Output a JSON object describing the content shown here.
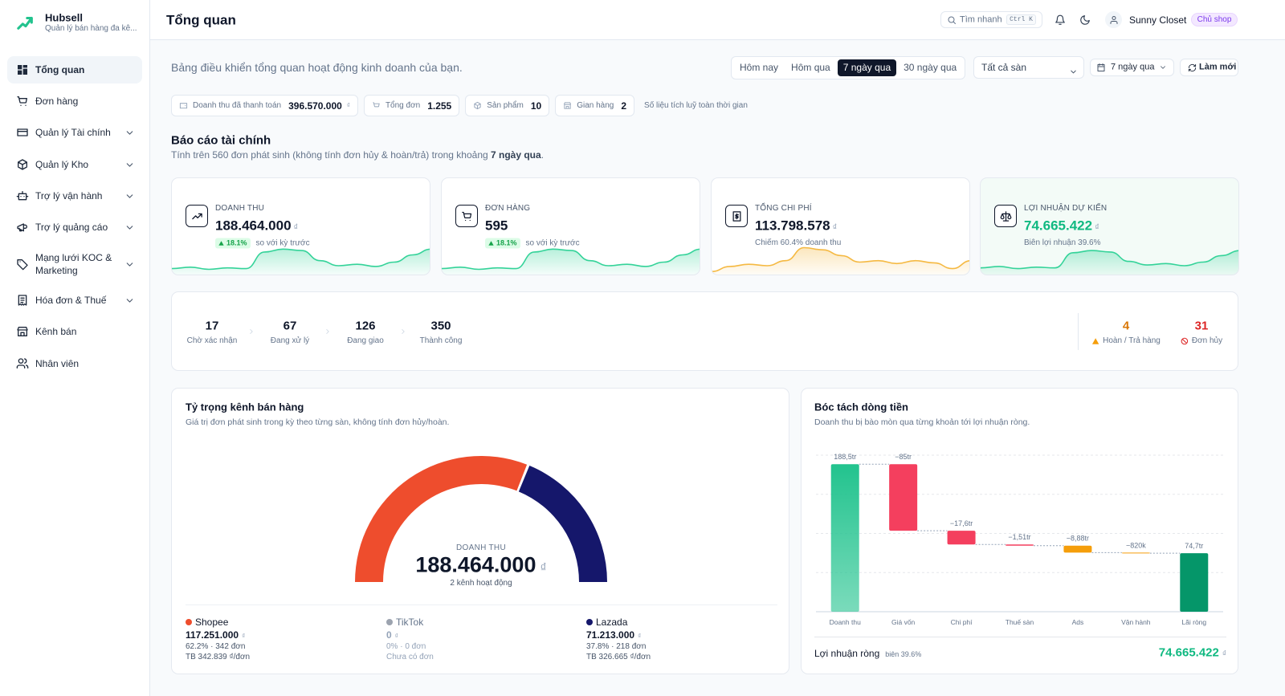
{
  "sidebar": {
    "brand": "Hubsell",
    "tagline": "Quản lý bán hàng đa kê...",
    "nav": [
      {
        "label": "Tổng quan",
        "active": true
      },
      {
        "label": "Đơn hàng"
      },
      {
        "label": "Quản lý Tài chính",
        "submenu": true
      },
      {
        "label": "Quản lý Kho",
        "submenu": true
      },
      {
        "label": "Trợ lý vận hành",
        "submenu": true
      },
      {
        "label": "Trợ lý quảng cáo",
        "submenu": true
      },
      {
        "label": "Mạng lưới KOC & Marketing",
        "submenu": true
      },
      {
        "label": "Hóa đơn & Thuế",
        "submenu": true
      },
      {
        "label": "Kênh bán"
      },
      {
        "label": "Nhân viên"
      }
    ]
  },
  "header": {
    "title": "Tổng quan",
    "search": "Tìm nhanh",
    "shortcut": "Ctrl K",
    "user": "Sunny Closet",
    "role": "Chủ shop"
  },
  "toolbar": {
    "description": "Bảng điều khiển tổng quan hoạt động kinh doanh của bạn.",
    "ranges": [
      "Hôm nay",
      "Hôm qua",
      "7 ngày qua",
      "30 ngày qua"
    ],
    "active_range": 2,
    "platform": "Tất cả sàn",
    "date": "7 ngày qua",
    "refresh": "Làm mới"
  },
  "summary": {
    "chips": [
      {
        "label": "Doanh thu đã thanh toán",
        "value": "396.570.000",
        "unit": "₫"
      },
      {
        "label": "Tổng đơn",
        "value": "1.255"
      },
      {
        "label": "Sản phẩm",
        "value": "10"
      },
      {
        "label": "Gian hàng",
        "value": "2"
      }
    ],
    "note": "Số liệu tích luỹ toàn thời gian"
  },
  "finance": {
    "title": "Báo cáo tài chính",
    "subtitle": "Tính trên 560 đơn phát sinh (không tính đơn hủy & hoàn/trả) trong khoảng ",
    "period": "7 ngày qua",
    "subtitle_end": "."
  },
  "kpi_sparkline_ylim": [
    0,
    100
  ],
  "kpis": [
    {
      "label": "DOANH THU",
      "value": "188.464.000",
      "unit": "₫",
      "change": "18.1%",
      "change_text": "so với kỳ trước",
      "color": "#34d399",
      "sparkline": [
        12,
        16,
        10,
        14,
        12,
        58,
        66,
        62,
        34,
        20,
        24,
        18,
        30,
        50,
        66
      ]
    },
    {
      "label": "ĐƠN HÀNG",
      "value": "595",
      "change": "18.1%",
      "change_text": "so với kỳ trước",
      "color": "#34d399",
      "sparkline": [
        12,
        16,
        10,
        14,
        12,
        58,
        66,
        62,
        34,
        20,
        24,
        18,
        30,
        50,
        66
      ]
    },
    {
      "label": "TỔNG CHI PHÍ",
      "value": "113.798.578",
      "unit": "₫",
      "note": "Chiếm 60.4% doanh thu",
      "color": "#f5b942",
      "sparkline": [
        4,
        18,
        24,
        20,
        34,
        70,
        64,
        48,
        30,
        34,
        26,
        34,
        28,
        12,
        34
      ]
    },
    {
      "label": "LỢI NHUẬN DỰ KIẾN",
      "value": "74.665.422",
      "unit": "₫",
      "note": "Biên lợi nhuận 39.6%",
      "color": "#34d399",
      "highlight": true,
      "sparkline": [
        14,
        18,
        12,
        16,
        14,
        56,
        62,
        58,
        32,
        22,
        26,
        20,
        30,
        48,
        62
      ]
    }
  ],
  "orders": {
    "steps": [
      {
        "value": "17",
        "label": "Chờ xác nhận"
      },
      {
        "value": "67",
        "label": "Đang xử lý"
      },
      {
        "value": "126",
        "label": "Đang giao"
      },
      {
        "value": "350",
        "label": "Thành công"
      }
    ],
    "returns": {
      "value": "4",
      "label": "Hoàn / Trả hàng",
      "color": "#d97706"
    },
    "cancelled": {
      "value": "31",
      "label": "Đơn hủy",
      "color": "#dc2626"
    }
  },
  "channels": {
    "title": "Tỷ trọng kênh bán hàng",
    "subtitle": "Giá trị đơn phát sinh trong kỳ theo từng sàn, không tính đơn hủy/hoàn.",
    "gauge": {
      "type": "gauge",
      "label": "DOANH THU",
      "value": "188.464.000",
      "unit": "₫",
      "note": "2 kênh hoạt động"
    },
    "items": [
      {
        "name": "Shopee",
        "color": "#ee4d2d",
        "value": "117.251.000",
        "unit": "₫",
        "share": 62.2,
        "share_label": "62.2% · 342 đơn",
        "avg": "TB 342.839 ₫/đơn"
      },
      {
        "name": "TikTok",
        "color": "#9ca3af",
        "value": "0",
        "unit": "₫",
        "share": 0,
        "share_label": "0% · 0 đơn",
        "avg": "Chưa có đơn",
        "inactive": true
      },
      {
        "name": "Lazada",
        "color": "#15176b",
        "value": "71.213.000",
        "unit": "₫",
        "share": 37.8,
        "share_label": "37.8% · 218 đơn",
        "avg": "TB 326.665 ₫/đơn"
      }
    ]
  },
  "cashflow": {
    "title": "Bóc tách dòng tiền",
    "subtitle": "Doanh thu bị bào mòn qua từng khoản tới lợi nhuận ròng.",
    "chart": {
      "type": "waterfall",
      "categories": [
        "Doanh thu",
        "Giá vốn",
        "Chi phí",
        "Thuế sàn",
        "Ads",
        "Vận hành",
        "Lãi ròng"
      ],
      "values": [
        188.5,
        -85,
        -17.6,
        -1.51,
        -8.88,
        -0.82,
        74.7
      ],
      "value_labels": [
        "188,5tr",
        "−85tr",
        "−17,6tr",
        "−1,51tr",
        "−8,88tr",
        "−820k",
        "74,7tr"
      ],
      "kinds": [
        "total",
        "delta",
        "delta",
        "delta",
        "delta",
        "delta",
        "total"
      ],
      "colors": [
        "#22c38e",
        "#f43f5e",
        "#f43f5e",
        "#f43f5e",
        "#f59e0b",
        "#f59e0b",
        "#059669"
      ],
      "ylim": [
        0,
        200
      ],
      "yticks": [
        0,
        50,
        100,
        150,
        200
      ],
      "grid": true
    },
    "footer": {
      "label": "Lợi nhuận ròng",
      "margin": "biên 39.6%",
      "value": "74.665.422",
      "unit": "₫"
    }
  }
}
